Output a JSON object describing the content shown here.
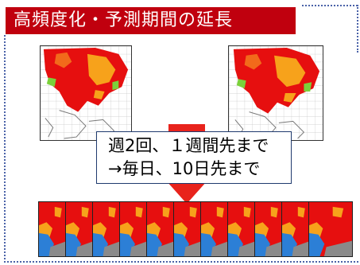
{
  "title": "高頻度化・予測期間の延長",
  "callout": {
    "line1": "週2回、１週間先まで",
    "line2": "→毎日、10日先まで"
  },
  "colors": {
    "title_bar": "#c0000e",
    "arrow": "#e8231c",
    "hot": "#e60f0f",
    "warm": "#f7a21b",
    "cool": "#2c7fd6",
    "land": "#8a8a8a",
    "frame": "#4a62a8"
  },
  "thumbnail_count": 11
}
